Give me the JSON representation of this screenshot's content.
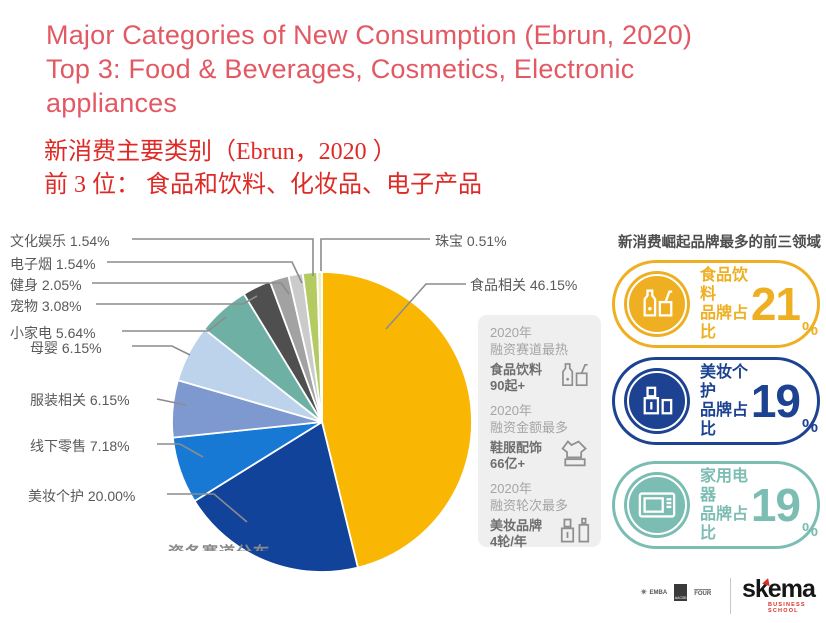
{
  "title": {
    "en_line1": "Major Categories of New Consumption (Ebrun, 2020)",
    "en_line2": "Top 3: Food & Beverages, Cosmetics, Electronic",
    "en_line3": "appliances",
    "zh_line1": "新消费主要类别（Ebrun，2020 ）",
    "zh_line2": "前 3 位： 食品和饮料、化妆品、电子产品"
  },
  "chart_data": {
    "type": "pie",
    "categories": [
      "食品相关",
      "美妆个护",
      "线下零售",
      "服装相关",
      "母婴",
      "小家电",
      "宠物",
      "健身",
      "电子烟",
      "文化娱乐",
      "珠宝"
    ],
    "values": [
      46.15,
      20.0,
      7.18,
      6.15,
      6.15,
      5.64,
      3.08,
      2.05,
      1.54,
      1.54,
      0.51
    ],
    "colors": [
      "#F9B703",
      "#11439B",
      "#1779D4",
      "#7E99CF",
      "#BDD3EC",
      "#6FB0A5",
      "#4F4F4F",
      "#A2A2A2",
      "#CBCBCB",
      "#B3CB61",
      "#EDEEC4"
    ],
    "title": "各赛道分布（clipped caption）",
    "start_angle_deg": 0,
    "direction": "clockwise",
    "legend_position": "callout-labels",
    "grid": false
  },
  "pie": {
    "caption_clipped": "资各赛道分布",
    "callouts": [
      {
        "text": "文化娱乐 1.54%"
      },
      {
        "text": "电子烟 1.54%"
      },
      {
        "text": "健身 2.05%"
      },
      {
        "text": "宠物 3.08%"
      },
      {
        "text": "小家电 5.64%"
      },
      {
        "text": "母婴 6.15%"
      },
      {
        "text": "服装相关 6.15%"
      },
      {
        "text": "线下零售 7.18%"
      },
      {
        "text": "美妆个护 20.00%"
      },
      {
        "text": "珠宝 0.51%"
      },
      {
        "text": "食品相关 46.15%"
      }
    ]
  },
  "funding_box": {
    "items": [
      {
        "period": "2020年",
        "metric": "融资赛道最热",
        "name": "食品饮料",
        "value": "90起+",
        "icon": "bottle-and-cup-icon"
      },
      {
        "period": "2020年",
        "metric": "融资金额最多",
        "name": "鞋服配饰",
        "value": "66亿+",
        "icon": "clothing-icon"
      },
      {
        "period": "2020年",
        "metric": "融资轮次最多",
        "name": "美妆品牌",
        "value": "4轮/年",
        "icon": "cosmetics-icon"
      }
    ]
  },
  "top3_panel": {
    "header": "新消费崛起品牌最多的前三领域",
    "items": [
      {
        "label_line1": "食品饮料",
        "label_line2": "品牌占比",
        "value": "21",
        "unit": "%",
        "color": "#EFAF23",
        "icon": "drinks-icon"
      },
      {
        "label_line1": "美妆个护",
        "label_line2": "品牌占比",
        "value": "19",
        "unit": "%",
        "color": "#1C4291",
        "icon": "cosmetics-icon"
      },
      {
        "label_line1": "家用电器",
        "label_line2": "品牌占比",
        "value": "19",
        "unit": "%",
        "color": "#7CBDB3",
        "icon": "microwave-icon"
      }
    ]
  },
  "footer": {
    "accreditations": {
      "emba": "EMBA",
      "aacsb": "AACSB",
      "four": "FOUR"
    },
    "brand": "skema",
    "brand_sub": "BUSINESS SCHOOL"
  }
}
